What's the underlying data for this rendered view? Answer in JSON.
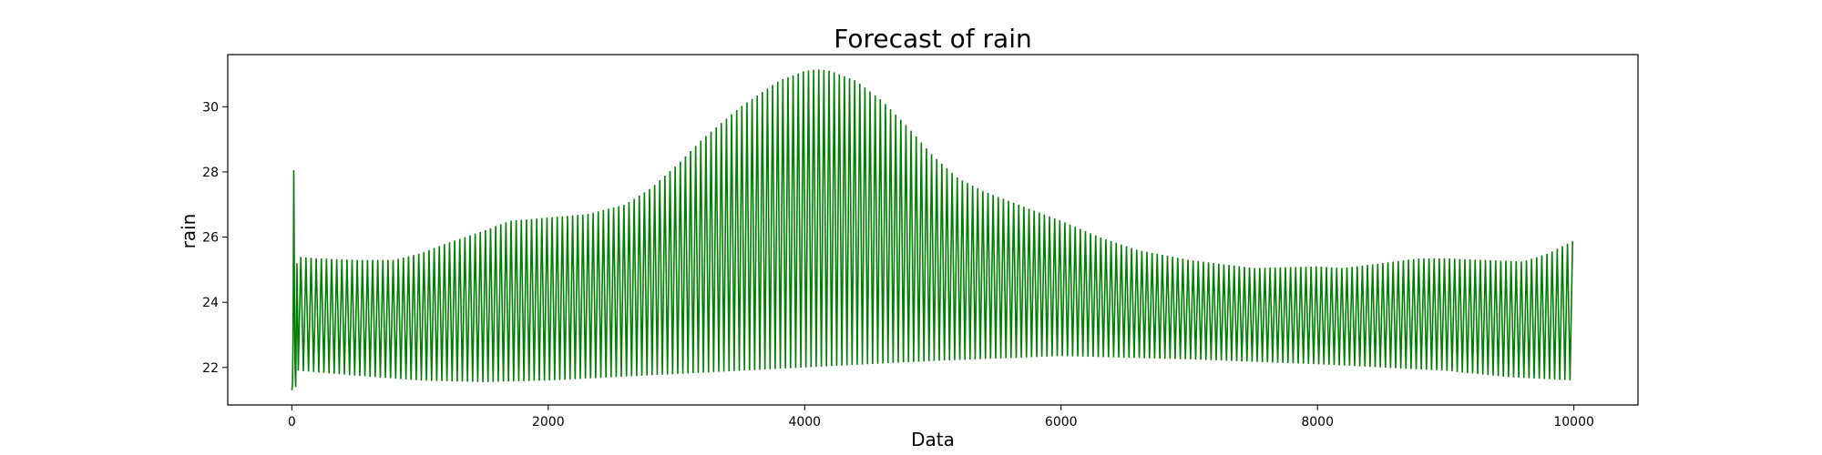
{
  "chart_data": {
    "type": "line",
    "title": "Forecast of rain",
    "xlabel": "Data",
    "ylabel": "rain",
    "xlim": [
      -500,
      10500
    ],
    "ylim": [
      20.85,
      31.6
    ],
    "xticks": [
      0,
      2000,
      4000,
      6000,
      8000,
      10000
    ],
    "yticks": [
      22,
      24,
      26,
      28,
      30
    ],
    "grid": false,
    "color": "#008000",
    "series": [
      {
        "oscillation_period": 40,
        "upper_envelope": {
          "x": [
            50,
            200,
            500,
            800,
            1000,
            1200,
            1500,
            1700,
            2000,
            2300,
            2600,
            2800,
            3000,
            3200,
            3500,
            3800,
            4000,
            4100,
            4200,
            4400,
            4600,
            4800,
            5000,
            5200,
            5400,
            5600,
            5800,
            6000,
            6300,
            6600,
            7000,
            7500,
            8000,
            8200,
            8500,
            8800,
            9000,
            9300,
            9600,
            9800,
            10000
          ],
          "y": [
            25.4,
            25.35,
            25.3,
            25.3,
            25.5,
            25.8,
            26.2,
            26.5,
            26.6,
            26.7,
            27.0,
            27.5,
            28.2,
            29.0,
            30.0,
            30.8,
            31.1,
            31.15,
            31.1,
            30.8,
            30.2,
            29.4,
            28.5,
            27.8,
            27.4,
            27.1,
            26.8,
            26.5,
            26.0,
            25.6,
            25.3,
            25.05,
            25.1,
            25.05,
            25.2,
            25.35,
            25.35,
            25.3,
            25.25,
            25.5,
            25.9
          ]
        },
        "lower_envelope": {
          "x": [
            50,
            500,
            1000,
            1500,
            2000,
            2500,
            3000,
            4000,
            5000,
            6000,
            7000,
            8000,
            9000,
            9500,
            10000
          ],
          "y": [
            21.9,
            21.75,
            21.6,
            21.55,
            21.6,
            21.7,
            21.8,
            22.0,
            22.2,
            22.35,
            22.25,
            22.1,
            21.9,
            21.7,
            21.6
          ]
        },
        "initial_spike": {
          "x": [
            0,
            5,
            10,
            15,
            20,
            25,
            30,
            40,
            50
          ],
          "y": [
            21.3,
            21.5,
            23.0,
            28.05,
            24.5,
            22.0,
            21.4,
            25.2,
            21.9
          ]
        }
      }
    ]
  }
}
